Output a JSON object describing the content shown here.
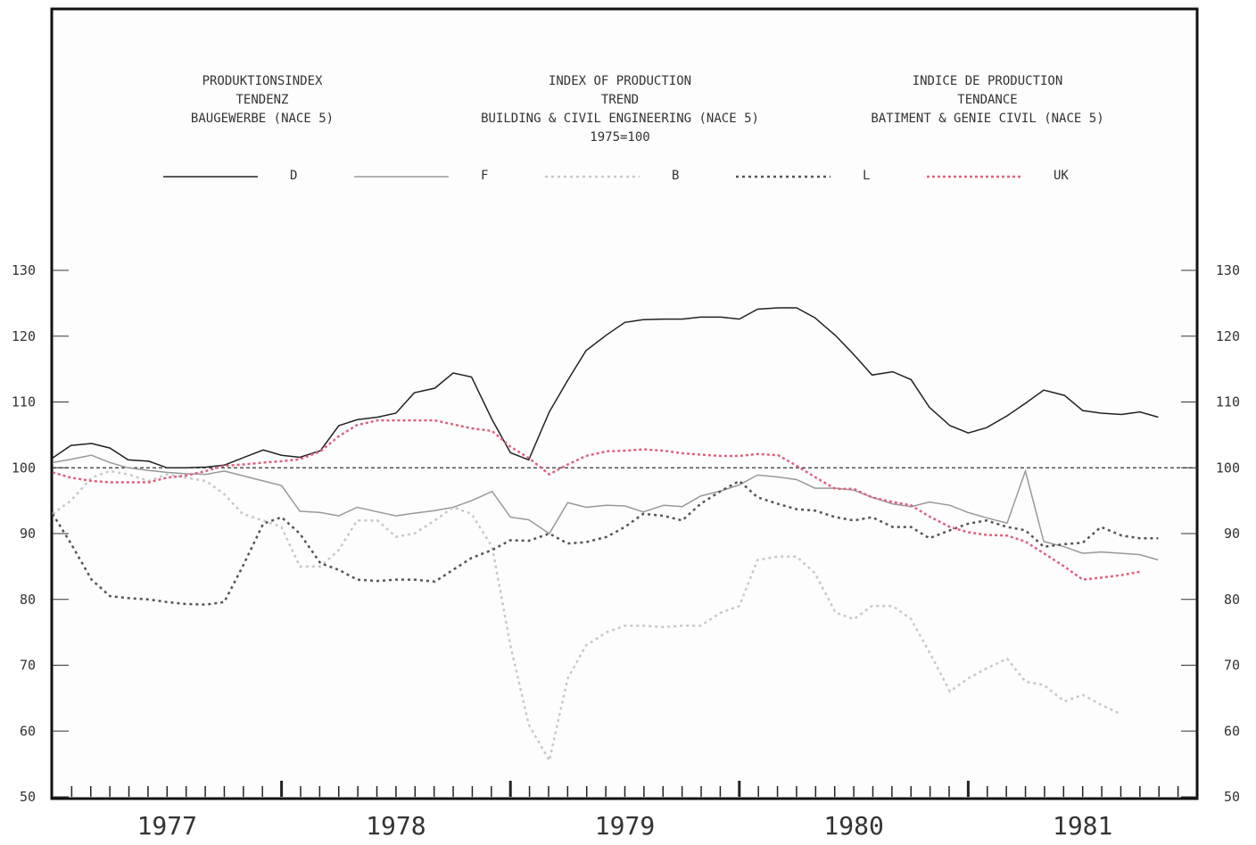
{
  "chart_data": {
    "type": "line",
    "title_blocks": [
      [
        "PRODUKTIONSINDEX",
        "TENDENZ",
        "BAUGEWERBE (NACE 5)"
      ],
      [
        "INDEX OF PRODUCTION",
        "TREND",
        "BUILDING & CIVIL ENGINEERING (NACE 5)",
        "1975=100"
      ],
      [
        "INDICE DE PRODUCTION",
        "TENDANCE",
        "BATIMENT & GENIE CIVIL (NACE 5)"
      ]
    ],
    "x": [
      1977,
      1977.08,
      1977.17,
      1977.25,
      1977.33,
      1977.42,
      1977.5,
      1977.58,
      1977.67,
      1977.75,
      1977.83,
      1977.92,
      1978,
      1978.08,
      1978.17,
      1978.25,
      1978.33,
      1978.42,
      1978.5,
      1978.58,
      1978.67,
      1978.75,
      1978.83,
      1978.92,
      1979,
      1979.08,
      1979.17,
      1979.25,
      1979.33,
      1979.42,
      1979.5,
      1979.58,
      1979.67,
      1979.75,
      1979.83,
      1979.92,
      1980,
      1980.08,
      1980.17,
      1980.25,
      1980.33,
      1980.42,
      1980.5,
      1980.58,
      1980.67,
      1980.75,
      1980.83,
      1980.92,
      1981,
      1981.08,
      1981.17,
      1981.25,
      1981.33,
      1981.42,
      1981.5,
      1981.58,
      1981.67,
      1981.75,
      1981.83
    ],
    "series": [
      {
        "name": "D",
        "color": "#222222",
        "dash": "none",
        "values": [
          101.5,
          103.4,
          103.7,
          103,
          101.2,
          101,
          100,
          100,
          100.1,
          100.4,
          101.5,
          102.7,
          101.9,
          101.6,
          102.6,
          106.4,
          107.3,
          107.7,
          108.3,
          111.4,
          112.1,
          114.4,
          113.8,
          107.3,
          102.3,
          101.2,
          108.5,
          113.3,
          117.8,
          120.2,
          122.1,
          122.5,
          122.6,
          122.6,
          122.9,
          122.9,
          122.6,
          124.1,
          124.3,
          124.3,
          122.8,
          120.1,
          117.2,
          114.1,
          114.6,
          113.4,
          109.2,
          106.4,
          105.3,
          106.1,
          107.9,
          109.8,
          111.8,
          111,
          108.7,
          108.3,
          108.1,
          108.5,
          107.7
        ]
      },
      {
        "name": "F",
        "color": "#999999",
        "dash": "none",
        "values": [
          100.8,
          101.3,
          101.9,
          100.8,
          100,
          99.6,
          99.3,
          99.1,
          99,
          99.5,
          98.8,
          98,
          97.3,
          93.4,
          93.2,
          92.7,
          94,
          93.3,
          92.7,
          93.1,
          93.5,
          94,
          95,
          96.4,
          92.5,
          92.1,
          90,
          94.7,
          94,
          94.3,
          94.2,
          93.3,
          94.3,
          94.1,
          95.7,
          96.5,
          97.4,
          98.9,
          98.6,
          98.2,
          96.9,
          96.9,
          96.6,
          95.5,
          94.5,
          94.1,
          94.8,
          94.3,
          93.2,
          92.4,
          91.6,
          99.5,
          88.8,
          88,
          87,
          87.2,
          87,
          86.8,
          86
        ]
      },
      {
        "name": "B",
        "color": "#c8c8c8",
        "dash": "3 4",
        "values": [
          93,
          95,
          98.5,
          99.5,
          99,
          98,
          99,
          98.5,
          98,
          96,
          93,
          92,
          91,
          85,
          85,
          87.5,
          92,
          92,
          89.5,
          90,
          92,
          94,
          93,
          88,
          73,
          61,
          55.5,
          68,
          73,
          75,
          76,
          76,
          75.8,
          76,
          76,
          78,
          79,
          86,
          86.5,
          86.5,
          84,
          78,
          77,
          79,
          79,
          77,
          72,
          66,
          68,
          69.5,
          71,
          67.5,
          67,
          64.5,
          65.5,
          64,
          62.5,
          null,
          null
        ]
      },
      {
        "name": "L",
        "color": "#555555",
        "dash": "3 4",
        "values": [
          93,
          88.5,
          83,
          80.5,
          80.2,
          80,
          79.6,
          79.3,
          79.2,
          79.6,
          85,
          91.5,
          92.5,
          90,
          85.5,
          84.5,
          83,
          82.8,
          83,
          83,
          82.7,
          84.5,
          86.3,
          87.5,
          89,
          88.9,
          90,
          88.5,
          88.7,
          89.5,
          91,
          93,
          92.7,
          92,
          94.5,
          96.5,
          98,
          95.5,
          94.5,
          93.7,
          93.5,
          92.5,
          92,
          92.5,
          91,
          91,
          89.3,
          90.5,
          91.5,
          92,
          91,
          90.5,
          88,
          88.4,
          88.6,
          91,
          89.7,
          89.3,
          89.3
        ]
      },
      {
        "name": "UK",
        "color": "#e0607e",
        "dash": "3 3",
        "values": [
          99.3,
          98.5,
          98,
          97.8,
          97.8,
          97.8,
          98.5,
          98.8,
          99.5,
          100.3,
          100.5,
          100.8,
          101,
          101.3,
          102.5,
          104.8,
          106.5,
          107.2,
          107.2,
          107.2,
          107.2,
          106.6,
          106,
          105.6,
          103.2,
          101.5,
          99,
          100.5,
          101.8,
          102.5,
          102.6,
          102.8,
          102.6,
          102.2,
          102,
          101.8,
          101.8,
          102.1,
          101.9,
          100.3,
          98.6,
          96.8,
          96.8,
          95.5,
          94.8,
          94.3,
          92.6,
          91,
          90.2,
          89.8,
          89.7,
          88.8,
          87,
          85,
          83,
          83.3,
          83.7,
          84.2,
          null
        ]
      }
    ],
    "reference_line": 100,
    "xlim": [
      1977,
      1982
    ],
    "xticks": [
      {
        "value": 1977.5,
        "label": "1977"
      },
      {
        "value": 1978.5,
        "label": "1978"
      },
      {
        "value": 1979.5,
        "label": "1979"
      },
      {
        "value": 1980.5,
        "label": "1980"
      },
      {
        "value": 1981.5,
        "label": "1981"
      }
    ],
    "ylim": [
      50,
      130
    ],
    "yticks": [
      50,
      60,
      70,
      80,
      90,
      100,
      110,
      120,
      130
    ],
    "grid": false
  }
}
